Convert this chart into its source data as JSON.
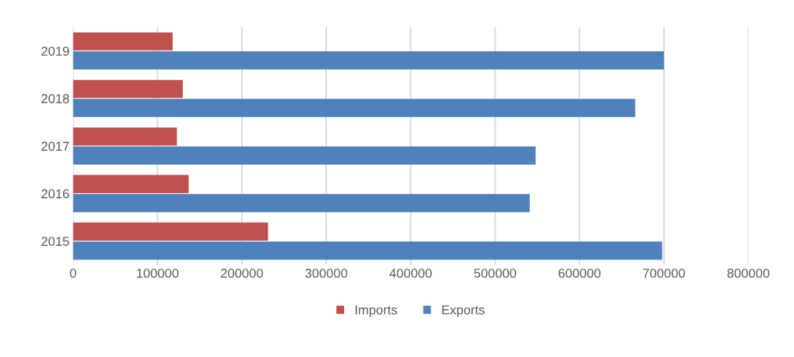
{
  "chart_data": {
    "type": "bar",
    "orientation": "horizontal",
    "categories": [
      "2019",
      "2018",
      "2017",
      "2016",
      "2015"
    ],
    "series": [
      {
        "name": "Imports",
        "color": "#c0504d",
        "values": [
          118000,
          130000,
          123000,
          137000,
          231000
        ]
      },
      {
        "name": "Exports",
        "color": "#4f81bd",
        "values": [
          700000,
          666000,
          548000,
          541000,
          698000
        ]
      }
    ],
    "xlim": [
      0,
      800000
    ],
    "xticks": [
      0,
      100000,
      200000,
      300000,
      400000,
      500000,
      600000,
      700000,
      800000
    ],
    "grid": "x",
    "legend": "bottom"
  }
}
